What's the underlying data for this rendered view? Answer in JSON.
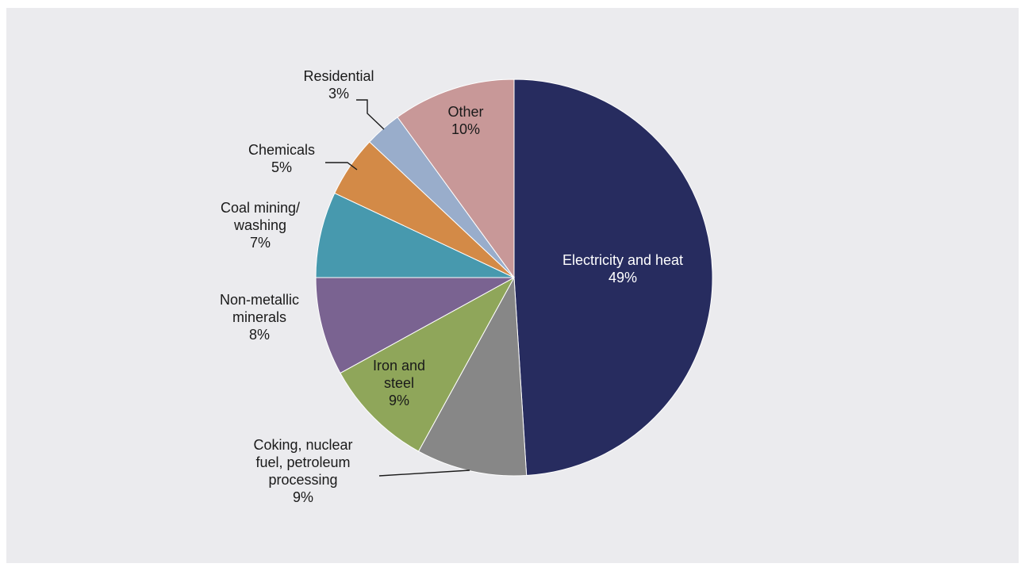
{
  "chart_data": {
    "type": "pie",
    "title": "",
    "slices": [
      {
        "label": "Electricity and heat",
        "value": 49,
        "value_label": "49%",
        "color": "#272c5f"
      },
      {
        "label": "Coking, nuclear fuel, petroleum processing",
        "value": 9,
        "value_label": "9%",
        "color": "#878787"
      },
      {
        "label": "Iron and steel",
        "value": 9,
        "value_label": "9%",
        "color": "#8fa65a"
      },
      {
        "label": "Non-metallic minerals",
        "value": 8,
        "value_label": "8%",
        "color": "#7a6391"
      },
      {
        "label": "Coal mining/ washing",
        "value": 7,
        "value_label": "7%",
        "color": "#4799ae"
      },
      {
        "label": "Chemicals",
        "value": 5,
        "value_label": "5%",
        "color": "#d38a47"
      },
      {
        "label": "Residential",
        "value": 3,
        "value_label": "3%",
        "color": "#99adcb"
      },
      {
        "label": "Other",
        "value": 10,
        "value_label": "10%",
        "color": "#c89898"
      }
    ],
    "label_lines": [
      [
        "Electricity and heat",
        "49%"
      ],
      [
        "Coking, nuclear",
        "fuel, petroleum",
        "processing",
        "9%"
      ],
      [
        "Iron and",
        "steel",
        "9%"
      ],
      [
        "Non-metallic",
        "minerals",
        "8%"
      ],
      [
        "Coal mining/",
        "washing",
        "7%"
      ],
      [
        "Chemicals",
        "5%"
      ],
      [
        "Residential",
        "3%"
      ],
      [
        "Other",
        "10%"
      ]
    ]
  }
}
